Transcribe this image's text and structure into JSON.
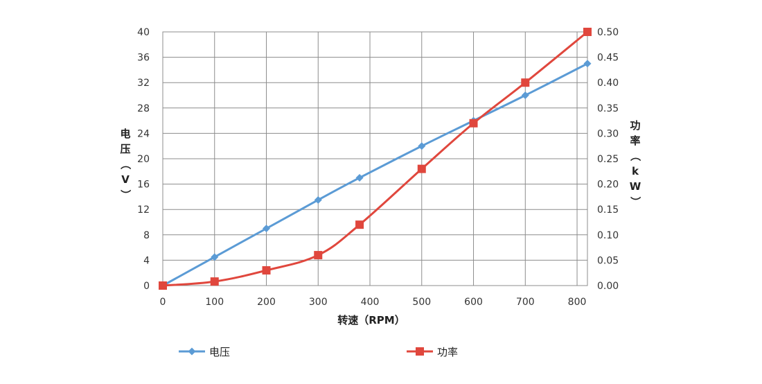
{
  "chart_data": {
    "type": "line",
    "xlabel": "转速（RPM）",
    "ylabel_left": "电压（V）",
    "ylabel_right": "功率（kW）",
    "xlim": [
      0,
      820
    ],
    "ylim_left": [
      0,
      40
    ],
    "ylim_right": [
      0,
      0.5
    ],
    "xticks": [
      "0",
      "100",
      "200",
      "300",
      "400",
      "500",
      "600",
      "700",
      "800"
    ],
    "yticks_left": [
      "0",
      "4",
      "8",
      "12",
      "16",
      "20",
      "24",
      "28",
      "32",
      "36",
      "40"
    ],
    "yticks_right": [
      "0.00",
      "0.05",
      "0.10",
      "0.15",
      "0.20",
      "0.25",
      "0.30",
      "0.35",
      "0.40",
      "0.45",
      "0.50"
    ],
    "grid": true,
    "legend_position": "bottom",
    "series": [
      {
        "name": "电压",
        "axis": "left",
        "color": "#5B9BD5",
        "marker": "diamond",
        "x": [
          0,
          100,
          200,
          300,
          380,
          500,
          600,
          700,
          820
        ],
        "y": [
          0,
          4.5,
          9,
          13.5,
          17,
          22,
          26,
          30,
          35
        ]
      },
      {
        "name": "功率",
        "axis": "right",
        "color": "#E0473D",
        "marker": "square",
        "x": [
          0,
          100,
          200,
          300,
          380,
          500,
          600,
          700,
          820
        ],
        "y": [
          0,
          0.008,
          0.03,
          0.06,
          0.12,
          0.23,
          0.32,
          0.4,
          0.5
        ]
      }
    ]
  }
}
